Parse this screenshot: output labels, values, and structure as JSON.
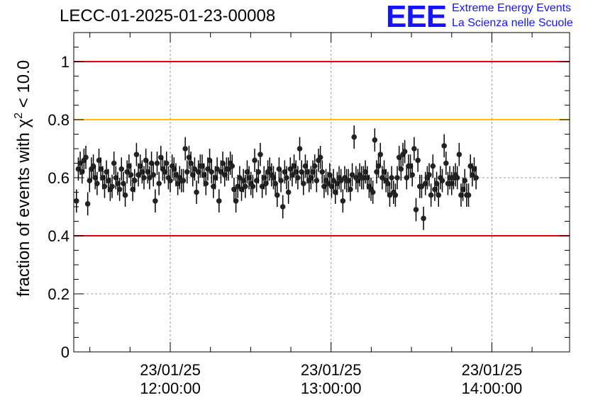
{
  "title": "LECC-01-2025-01-23-00008",
  "logo": {
    "mark": "EEE",
    "line1": "Extreme Energy Events",
    "line2": "La Scienza nelle Scuole"
  },
  "colors": {
    "limit_red": "#e8000b",
    "limit_yellow": "#ffc000",
    "points": "#000000",
    "logo_blue": "#1414ff"
  },
  "chart_data": {
    "type": "scatter",
    "ylabel_main": "fraction of events with ",
    "ylabel_chi": "χ",
    "ylabel_sup": "2",
    "ylabel_tail": " < 10.0",
    "ylim": [
      0,
      1.1
    ],
    "xlim": [
      "11:24:00",
      "14:29:00"
    ],
    "y_ticks": [
      {
        "value": 0,
        "label": "0"
      },
      {
        "value": 0.2,
        "label": "0.2"
      },
      {
        "value": 0.4,
        "label": "0.4"
      },
      {
        "value": 0.6,
        "label": "0.6"
      },
      {
        "value": 0.8,
        "label": "0.8"
      },
      {
        "value": 1,
        "label": "1"
      }
    ],
    "x_ticks": [
      {
        "time": "12:00:00",
        "date": "23/01/25",
        "label": "12:00:00"
      },
      {
        "time": "13:00:00",
        "date": "23/01/25",
        "label": "13:00:00"
      },
      {
        "time": "14:00:00",
        "date": "23/01/25",
        "label": "14:00:00"
      }
    ],
    "reference_lines": [
      {
        "y": 1.0,
        "color": "#e8000b"
      },
      {
        "y": 0.8,
        "color": "#ffc000"
      },
      {
        "y": 0.4,
        "color": "#e8000b"
      }
    ],
    "grid": true,
    "error_bar_size": 0.04,
    "x_start": "11:25:00",
    "x_step_seconds": 42,
    "y": [
      0.52,
      0.63,
      0.65,
      0.62,
      0.66,
      0.67,
      0.51,
      0.59,
      0.63,
      0.64,
      0.6,
      0.58,
      0.66,
      0.63,
      0.6,
      0.57,
      0.62,
      0.59,
      0.56,
      0.57,
      0.65,
      0.6,
      0.58,
      0.56,
      0.63,
      0.58,
      0.54,
      0.62,
      0.64,
      0.61,
      0.56,
      0.59,
      0.68,
      0.61,
      0.64,
      0.62,
      0.6,
      0.66,
      0.62,
      0.6,
      0.65,
      0.61,
      0.52,
      0.65,
      0.58,
      0.67,
      0.63,
      0.62,
      0.65,
      0.6,
      0.59,
      0.64,
      0.63,
      0.61,
      0.58,
      0.6,
      0.59,
      0.59,
      0.7,
      0.62,
      0.67,
      0.65,
      0.61,
      0.63,
      0.55,
      0.62,
      0.64,
      0.64,
      0.61,
      0.58,
      0.63,
      0.66,
      0.62,
      0.57,
      0.6,
      0.63,
      0.52,
      0.62,
      0.65,
      0.61,
      0.63,
      0.63,
      0.65,
      0.64,
      0.56,
      0.52,
      0.57,
      0.6,
      0.56,
      0.59,
      0.57,
      0.62,
      0.6,
      0.58,
      0.57,
      0.66,
      0.59,
      0.62,
      0.68,
      0.57,
      0.6,
      0.58,
      0.62,
      0.63,
      0.61,
      0.6,
      0.58,
      0.54,
      0.63,
      0.59,
      0.5,
      0.62,
      0.6,
      0.55,
      0.63,
      0.61,
      0.64,
      0.62,
      0.6,
      0.7,
      0.62,
      0.58,
      0.64,
      0.62,
      0.59,
      0.6,
      0.62,
      0.64,
      0.59,
      0.66,
      0.67,
      0.62,
      0.57,
      0.59,
      0.58,
      0.61,
      0.57,
      0.59,
      0.55,
      0.58,
      0.6,
      0.59,
      0.52,
      0.6,
      0.59,
      0.59,
      0.56,
      0.61,
      0.74,
      0.6,
      0.59,
      0.61,
      0.6,
      0.6,
      0.62,
      0.6,
      0.57,
      0.56,
      0.55,
      0.73,
      0.62,
      0.64,
      0.68,
      0.6,
      0.62,
      0.59,
      0.58,
      0.54,
      0.6,
      0.55,
      0.54,
      0.6,
      0.67,
      0.63,
      0.68,
      0.69,
      0.6,
      0.64,
      0.64,
      0.61,
      0.7,
      0.49,
      0.66,
      0.57,
      0.57,
      0.46,
      0.58,
      0.6,
      0.61,
      0.54,
      0.64,
      0.56,
      0.58,
      0.54,
      0.6,
      0.59,
      0.71,
      0.65,
      0.58,
      0.6,
      0.58,
      0.6,
      0.61,
      0.6,
      0.68,
      0.54,
      0.56,
      0.59,
      0.54,
      0.54,
      0.64,
      0.61,
      0.63,
      0.6
    ]
  }
}
